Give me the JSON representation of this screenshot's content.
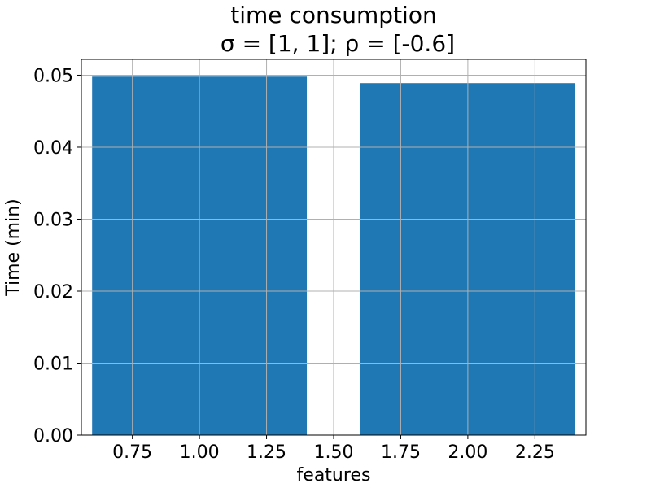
{
  "chart_data": {
    "type": "bar",
    "title": "time consumption",
    "subtitle": "σ = [1, 1];  ρ = [-0.6]",
    "xlabel": "features",
    "ylabel": "Time (min)",
    "x": [
      1,
      2
    ],
    "values": [
      0.0498,
      0.0489
    ],
    "bar_width": 0.8,
    "bar_color": "#1f77b4",
    "xlim": [
      0.56,
      2.44
    ],
    "ylim": [
      0,
      0.0522
    ],
    "xticks": [
      0.75,
      1.0,
      1.25,
      1.5,
      1.75,
      2.0,
      2.25
    ],
    "xtick_labels": [
      "0.75",
      "1.00",
      "1.25",
      "1.50",
      "1.75",
      "2.00",
      "2.25"
    ],
    "yticks": [
      0,
      0.01,
      0.02,
      0.03,
      0.04,
      0.05
    ],
    "ytick_labels": [
      "0.00",
      "0.01",
      "0.02",
      "0.03",
      "0.04",
      "0.05"
    ],
    "grid": true,
    "grid_color": "#b0b0b0"
  }
}
